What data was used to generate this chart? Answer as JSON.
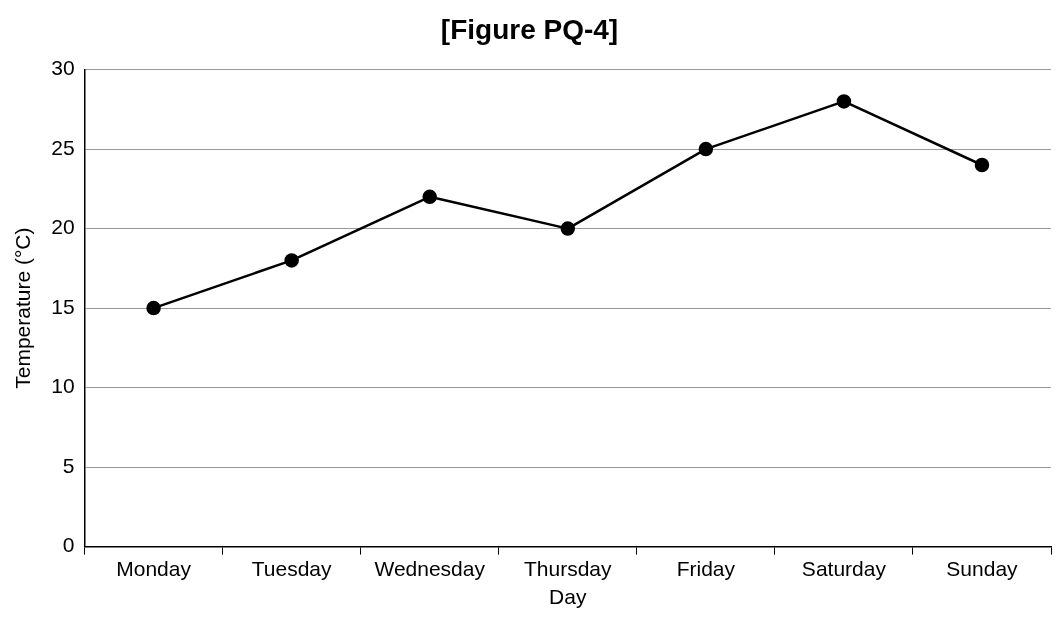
{
  "chart_data": {
    "type": "line",
    "title": "[Figure PQ-4]",
    "xlabel": "Day",
    "ylabel": "Temperature (°C)",
    "categories": [
      "Monday",
      "Tuesday",
      "Wednesday",
      "Thursday",
      "Friday",
      "Saturday",
      "Sunday"
    ],
    "series": [
      {
        "color": "#000000",
        "values": [
          15,
          18,
          22,
          20,
          25,
          28,
          24
        ]
      }
    ],
    "ylim": [
      0,
      30
    ],
    "yticks": [
      0,
      5,
      10,
      15,
      20,
      25,
      30
    ],
    "grid": "y",
    "legend": false,
    "marker": "circle",
    "line_style": "solid"
  }
}
